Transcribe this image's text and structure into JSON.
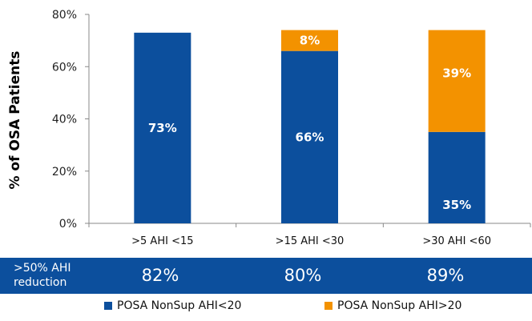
{
  "chart_data": {
    "type": "bar",
    "stacked": true,
    "title": "",
    "xlabel": "",
    "ylabel": "% of OSA Patients",
    "ylim": [
      0,
      80
    ],
    "yticks": [
      0,
      20,
      40,
      60,
      80
    ],
    "ytick_labels": [
      "0%",
      "20%",
      "40%",
      "60%",
      "80%"
    ],
    "grid": false,
    "categories": [
      ">5 AHI <15",
      ">15 AHI <30",
      ">30 AHI <60"
    ],
    "series": [
      {
        "name": "POSA NonSup AHI<20",
        "color": "#0c4f9d",
        "values": [
          73,
          66,
          35
        ],
        "labels": [
          "73%",
          "66%",
          "35%"
        ]
      },
      {
        "name": "POSA NonSup AHI>20",
        "color": "#f39200",
        "values": [
          0,
          8,
          39
        ],
        "labels": [
          "",
          "8%",
          "39%"
        ]
      }
    ],
    "legend_position": "bottom",
    "table_row": {
      "label": ">50% AHI reduction",
      "label_lines": [
        ">50% AHI",
        "reduction"
      ],
      "values": [
        "82%",
        "80%",
        "89%"
      ],
      "color": "#0c4f9d"
    }
  }
}
